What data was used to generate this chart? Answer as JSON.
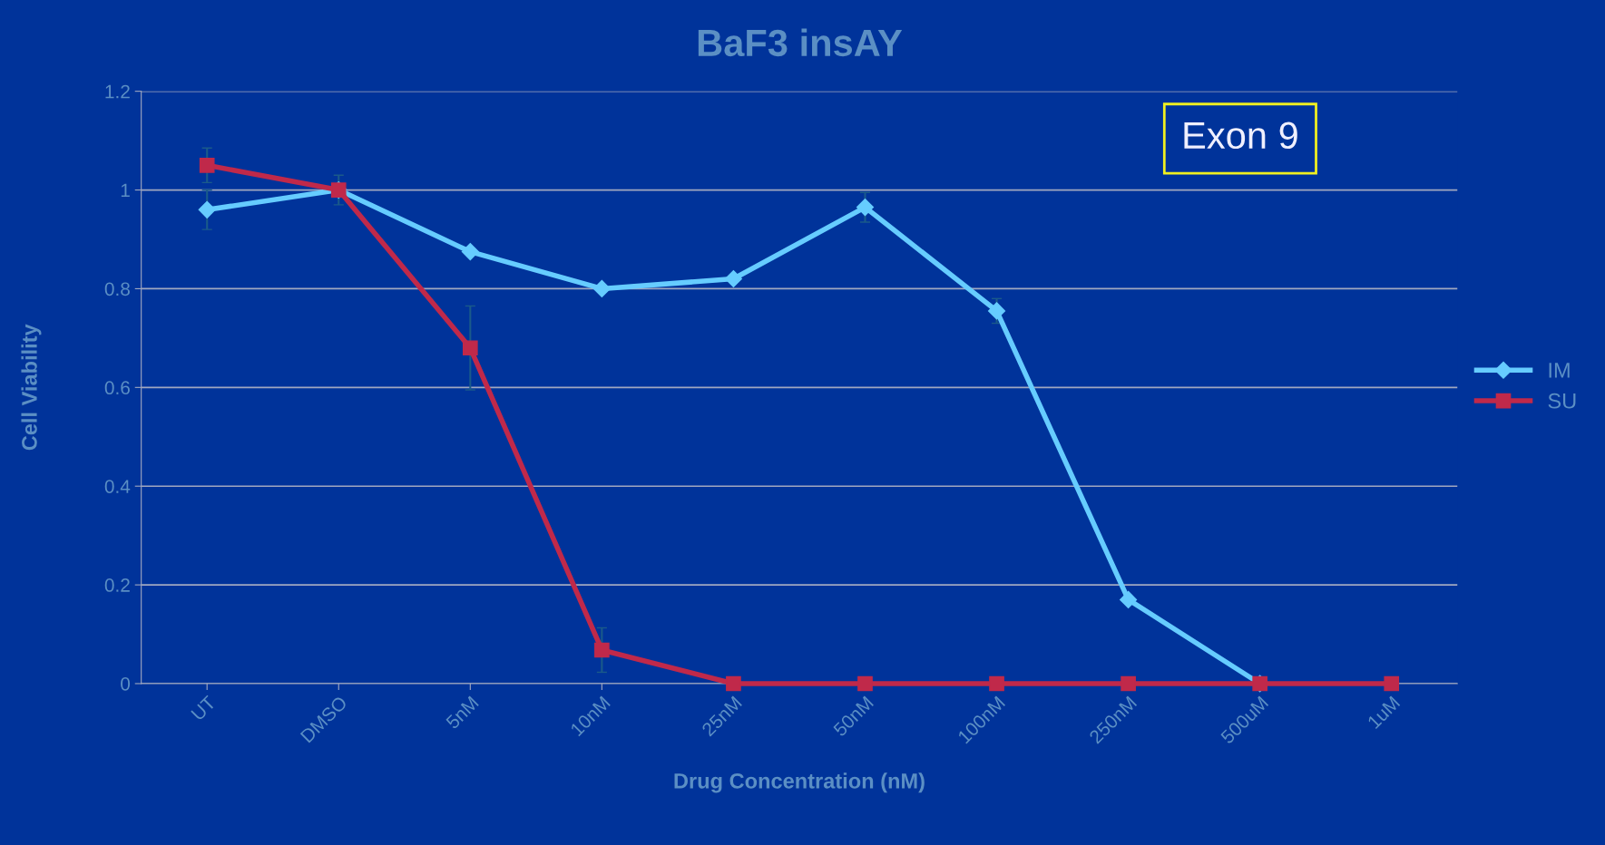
{
  "chart_data": {
    "type": "line",
    "title": "BaF3 insAY",
    "xlabel": "Drug Concentration (nM)",
    "ylabel": "Cell Viability",
    "categories": [
      "UT",
      "DMSO",
      "5nM",
      "10nM",
      "25nM",
      "50nM",
      "100nM",
      "250nM",
      "500uM",
      "1uM"
    ],
    "series": [
      {
        "name": "IM",
        "color": "#66ccff",
        "marker": "diamond",
        "values": [
          0.96,
          1.0,
          0.875,
          0.8,
          0.82,
          0.965,
          0.755,
          0.17,
          0.0,
          null
        ],
        "errors": [
          0.04,
          null,
          null,
          null,
          null,
          0.03,
          0.025,
          null,
          null,
          null
        ]
      },
      {
        "name": "SU",
        "color": "#c0294a",
        "marker": "square",
        "values": [
          1.05,
          1.0,
          0.68,
          0.068,
          0.0,
          0.0,
          0.0,
          0.0,
          0.0,
          0.0
        ],
        "errors": [
          0.035,
          0.03,
          0.085,
          0.045,
          null,
          null,
          null,
          null,
          null,
          null
        ]
      }
    ],
    "ylim": [
      0,
      1.2
    ],
    "yticks": [
      0,
      0.2,
      0.4,
      0.6,
      0.8,
      1,
      1.2
    ],
    "grid": "y",
    "legend": "right",
    "line_style": "solid",
    "annotations": [
      "Exon 9"
    ]
  }
}
